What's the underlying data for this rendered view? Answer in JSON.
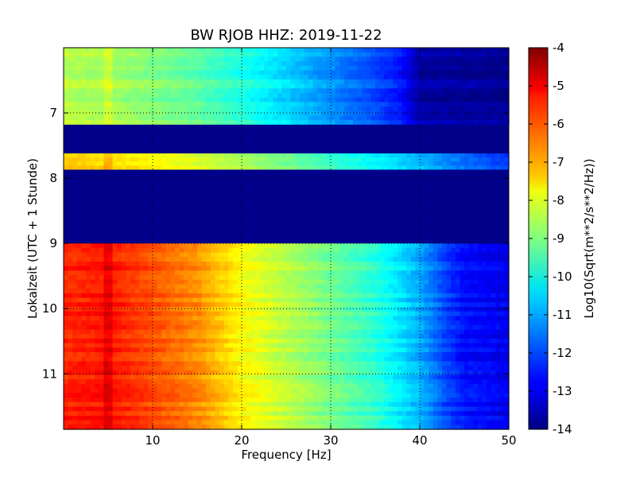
{
  "chart_data": {
    "type": "heatmap",
    "title": "BW RJOB HHZ: 2019-11-22",
    "xlabel": "Frequency [Hz]",
    "ylabel": "Lokalzeit (UTC + 1 Stunde)",
    "xlim": [
      0,
      50
    ],
    "ylim": [
      6.0,
      11.85
    ],
    "y_inverted": true,
    "grid": true,
    "x_ticks": [
      "10",
      "20",
      "30",
      "40",
      "50"
    ],
    "x_tick_values": [
      10,
      20,
      30,
      40,
      50
    ],
    "y_ticks": [
      "7",
      "8",
      "9",
      "10",
      "11"
    ],
    "y_tick_values": [
      7,
      8,
      9,
      10,
      11
    ],
    "colorbar": {
      "label": "Log10(Sqrt(m**2/s**2/Hz))",
      "min": -14,
      "max": -4,
      "ticks": [
        "-4",
        "-5",
        "-6",
        "-7",
        "-8",
        "-9",
        "-10",
        "-11",
        "-12",
        "-13",
        "-14"
      ],
      "tick_values": [
        -4,
        -5,
        -6,
        -7,
        -8,
        -9,
        -10,
        -11,
        -12,
        -13,
        -14
      ],
      "colormap": "jet"
    },
    "segments": [
      {
        "y_start": 6.0,
        "y_end": 7.18,
        "state": "low",
        "profile": [
          [
            0,
            -8.4
          ],
          [
            5,
            -8.6
          ],
          [
            10,
            -8.9
          ],
          [
            15,
            -9.3
          ],
          [
            20,
            -9.9
          ],
          [
            25,
            -10.6
          ],
          [
            30,
            -11.3
          ],
          [
            35,
            -12.0
          ],
          [
            38,
            -12.6
          ],
          [
            40,
            -13.6
          ],
          [
            50,
            -13.8
          ]
        ]
      },
      {
        "y_start": 7.18,
        "y_end": 7.62,
        "state": "no-data",
        "value": -13.9
      },
      {
        "y_start": 7.62,
        "y_end": 7.87,
        "state": "low",
        "profile": [
          [
            0,
            -7.3
          ],
          [
            5,
            -7.5
          ],
          [
            10,
            -7.8
          ],
          [
            15,
            -8.2
          ],
          [
            20,
            -8.7
          ],
          [
            25,
            -9.2
          ],
          [
            30,
            -9.8
          ],
          [
            35,
            -10.4
          ],
          [
            40,
            -11.0
          ],
          [
            45,
            -11.8
          ],
          [
            50,
            -12.3
          ]
        ]
      },
      {
        "y_start": 7.87,
        "y_end": 9.0,
        "state": "no-data",
        "value": -13.9
      },
      {
        "y_start": 9.0,
        "y_end": 11.85,
        "state": "high",
        "profile": [
          [
            0,
            -5.6
          ],
          [
            5,
            -5.4
          ],
          [
            10,
            -6.0
          ],
          [
            15,
            -6.6
          ],
          [
            20,
            -7.7
          ],
          [
            25,
            -8.4
          ],
          [
            30,
            -9.1
          ],
          [
            35,
            -9.8
          ],
          [
            40,
            -11.0
          ],
          [
            43,
            -12.1
          ],
          [
            45,
            -12.6
          ],
          [
            50,
            -12.9
          ]
        ]
      }
    ]
  }
}
